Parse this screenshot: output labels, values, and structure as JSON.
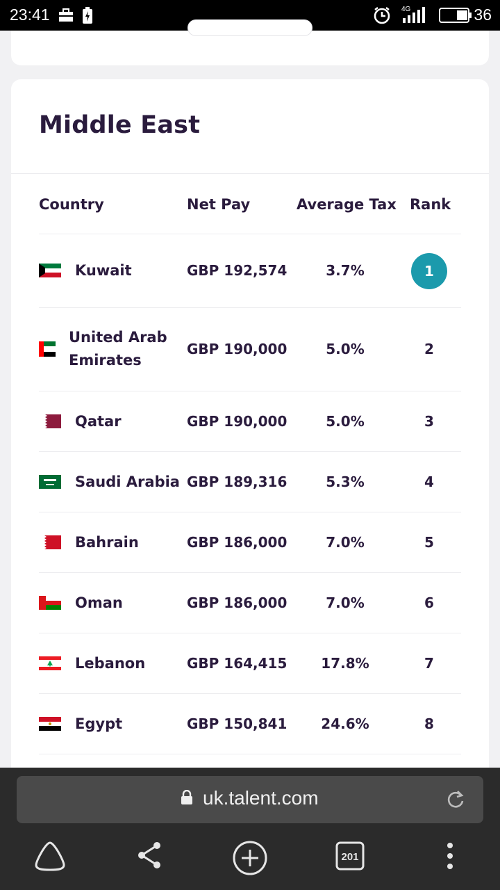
{
  "status_bar": {
    "time": "23:41",
    "battery_level": "36",
    "network": "4G",
    "icons": [
      "briefcase-icon",
      "battery-saver-icon",
      "alarm-icon",
      "signal-icon",
      "battery-icon"
    ]
  },
  "section": {
    "title": "Middle East"
  },
  "table": {
    "headers": {
      "country": "Country",
      "net_pay": "Net Pay",
      "average_tax": "Average Tax",
      "rank": "Rank"
    },
    "rows": [
      {
        "country": "Kuwait",
        "net_pay": "GBP 192,574",
        "average_tax": "3.7%",
        "rank": "1",
        "flag": "kuwait-flag-icon"
      },
      {
        "country": "United Arab Emirates",
        "country_line1": "United Arab",
        "country_line2": "Emirates",
        "net_pay": "GBP 190,000",
        "average_tax": "5.0%",
        "rank": "2",
        "flag": "uae-flag-icon"
      },
      {
        "country": "Qatar",
        "net_pay": "GBP 190,000",
        "average_tax": "5.0%",
        "rank": "3",
        "flag": "qatar-flag-icon"
      },
      {
        "country": "Saudi Arabia",
        "net_pay": "GBP 189,316",
        "average_tax": "5.3%",
        "rank": "4",
        "flag": "saudi-arabia-flag-icon"
      },
      {
        "country": "Bahrain",
        "net_pay": "GBP 186,000",
        "average_tax": "7.0%",
        "rank": "5",
        "flag": "bahrain-flag-icon"
      },
      {
        "country": "Oman",
        "net_pay": "GBP 186,000",
        "average_tax": "7.0%",
        "rank": "6",
        "flag": "oman-flag-icon"
      },
      {
        "country": "Lebanon",
        "net_pay": "GBP 164,415",
        "average_tax": "17.8%",
        "rank": "7",
        "flag": "lebanon-flag-icon"
      },
      {
        "country": "Egypt",
        "net_pay": "GBP 150,841",
        "average_tax": "24.6%",
        "rank": "8",
        "flag": "egypt-flag-icon"
      }
    ]
  },
  "browser": {
    "url": "uk.talent.com",
    "tab_count": "201",
    "nav_icons": [
      "home-icon",
      "share-icon",
      "new-tab-icon",
      "tabs-icon",
      "menu-icon"
    ]
  },
  "colors": {
    "accent": "#1b9aac",
    "heading": "#2a1b3d",
    "page_bg": "#f1f1f3",
    "browser_bg": "#2b2b2b"
  }
}
